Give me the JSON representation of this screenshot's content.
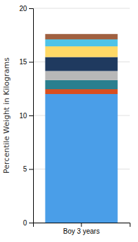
{
  "chart_data": {
    "type": "bar",
    "stacked": true,
    "categories": [
      "Boy 3 years"
    ],
    "series": [
      {
        "color": "#4A9EE8",
        "values": [
          12.0
        ]
      },
      {
        "color": "#D94E1F",
        "values": [
          0.45
        ]
      },
      {
        "color": "#2A7F8F",
        "values": [
          0.85
        ]
      },
      {
        "color": "#B8B8B8",
        "values": [
          0.85
        ]
      },
      {
        "color": "#1F3A5F",
        "values": [
          1.3
        ]
      },
      {
        "color": "#FFD966",
        "values": [
          1.0
        ]
      },
      {
        "color": "#4EC3E8",
        "values": [
          0.65
        ]
      },
      {
        "color": "#A06040",
        "values": [
          0.5
        ]
      }
    ],
    "ylabel": "Percentile Weight in Kilograms",
    "ylim": [
      0,
      20
    ],
    "yticks": [
      0,
      5,
      10,
      15,
      20
    ],
    "grid": true
  }
}
